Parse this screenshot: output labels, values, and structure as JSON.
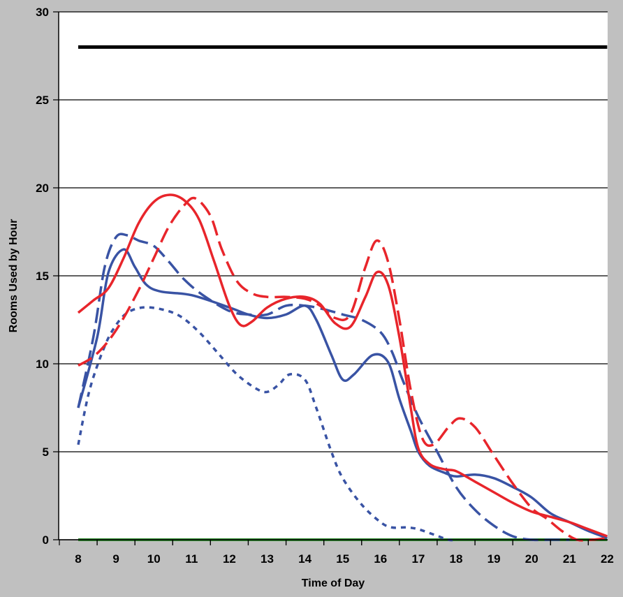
{
  "chart_data": {
    "type": "line",
    "title": "",
    "xlabel": "Time of Day",
    "ylabel": "Rooms Used by Hour",
    "xlim": [
      8,
      22
    ],
    "ylim": [
      0,
      30
    ],
    "x_ticks": [
      "8",
      "9",
      "10",
      "11",
      "12",
      "13",
      "14",
      "15",
      "16",
      "17",
      "18",
      "19",
      "20",
      "21",
      "22"
    ],
    "y_ticks": [
      "0",
      "5",
      "10",
      "15",
      "20",
      "25",
      "30"
    ],
    "grid": "horizontal",
    "legend": "none",
    "series": [
      {
        "color": "#000000",
        "dash": "solid",
        "width": 5,
        "points": [
          [
            8,
            28
          ],
          [
            22,
            28
          ]
        ]
      },
      {
        "color": "#2e8b2e",
        "dash": "solid",
        "width": 4,
        "points": [
          [
            8,
            0
          ],
          [
            22,
            0
          ]
        ]
      },
      {
        "color": "#3953a4",
        "dash": "solid",
        "width": 3.5,
        "points": [
          [
            8,
            7.5
          ],
          [
            8.5,
            11.5
          ],
          [
            8.8,
            15.2
          ],
          [
            9.2,
            16.5
          ],
          [
            9.5,
            15.5
          ],
          [
            9.8,
            14.5
          ],
          [
            10.2,
            14.1
          ],
          [
            11,
            13.9
          ],
          [
            12,
            13.2
          ],
          [
            12.5,
            12.8
          ],
          [
            13,
            12.6
          ],
          [
            13.5,
            12.8
          ],
          [
            14,
            13.3
          ],
          [
            14.3,
            12.5
          ],
          [
            14.7,
            10.5
          ],
          [
            15,
            9.1
          ],
          [
            15.3,
            9.4
          ],
          [
            15.8,
            10.5
          ],
          [
            16.2,
            10.1
          ],
          [
            16.5,
            8.0
          ],
          [
            16.8,
            6.2
          ],
          [
            17,
            5.0
          ],
          [
            17.3,
            4.2
          ],
          [
            17.7,
            3.8
          ],
          [
            18,
            3.6
          ],
          [
            18.5,
            3.7
          ],
          [
            19,
            3.5
          ],
          [
            19.5,
            3.0
          ],
          [
            20,
            2.4
          ],
          [
            20.5,
            1.5
          ],
          [
            21,
            1.0
          ],
          [
            21.5,
            0.5
          ],
          [
            22,
            0.1
          ]
        ]
      },
      {
        "color": "#3953a4",
        "dash": "long",
        "width": 3.5,
        "points": [
          [
            8,
            7.5
          ],
          [
            8.4,
            11.5
          ],
          [
            8.7,
            15.5
          ],
          [
            9,
            17.2
          ],
          [
            9.3,
            17.3
          ],
          [
            9.6,
            17.0
          ],
          [
            10,
            16.7
          ],
          [
            10.4,
            15.8
          ],
          [
            10.8,
            14.8
          ],
          [
            11.3,
            13.9
          ],
          [
            12,
            13.0
          ],
          [
            12.5,
            12.8
          ],
          [
            13,
            12.8
          ],
          [
            13.5,
            13.3
          ],
          [
            14,
            13.3
          ],
          [
            14.5,
            13.1
          ],
          [
            15,
            12.8
          ],
          [
            15.5,
            12.5
          ],
          [
            16,
            11.8
          ],
          [
            16.3,
            10.7
          ],
          [
            16.6,
            9.0
          ],
          [
            17,
            7.0
          ],
          [
            17.5,
            5.0
          ],
          [
            18,
            3.0
          ],
          [
            18.5,
            1.7
          ],
          [
            19,
            0.8
          ],
          [
            19.5,
            0.2
          ],
          [
            20,
            0
          ],
          [
            20.5,
            0
          ],
          [
            21,
            0
          ]
        ]
      },
      {
        "color": "#3953a4",
        "dash": "short",
        "width": 3.5,
        "points": [
          [
            8,
            5.4
          ],
          [
            8.3,
            8.5
          ],
          [
            8.7,
            11.0
          ],
          [
            9,
            12.2
          ],
          [
            9.3,
            12.9
          ],
          [
            9.7,
            13.2
          ],
          [
            10.2,
            13.1
          ],
          [
            10.7,
            12.7
          ],
          [
            11.2,
            11.8
          ],
          [
            11.7,
            10.6
          ],
          [
            12.2,
            9.4
          ],
          [
            12.7,
            8.6
          ],
          [
            13,
            8.4
          ],
          [
            13.3,
            8.8
          ],
          [
            13.6,
            9.4
          ],
          [
            14,
            9.1
          ],
          [
            14.3,
            7.5
          ],
          [
            14.7,
            5.0
          ],
          [
            15,
            3.5
          ],
          [
            15.5,
            2.0
          ],
          [
            16,
            1.0
          ],
          [
            16.3,
            0.7
          ],
          [
            16.7,
            0.7
          ],
          [
            17,
            0.6
          ],
          [
            17.4,
            0.3
          ],
          [
            17.8,
            0
          ],
          [
            18,
            0
          ]
        ]
      },
      {
        "color": "#e8252b",
        "dash": "solid",
        "width": 3.5,
        "points": [
          [
            8,
            12.9
          ],
          [
            8.4,
            13.6
          ],
          [
            8.8,
            14.3
          ],
          [
            9.2,
            16.0
          ],
          [
            9.6,
            18.0
          ],
          [
            10,
            19.2
          ],
          [
            10.4,
            19.6
          ],
          [
            10.8,
            19.3
          ],
          [
            11.2,
            18.2
          ],
          [
            11.6,
            15.8
          ],
          [
            12,
            13.3
          ],
          [
            12.3,
            12.2
          ],
          [
            12.6,
            12.4
          ],
          [
            13,
            13.2
          ],
          [
            13.5,
            13.7
          ],
          [
            14,
            13.8
          ],
          [
            14.4,
            13.4
          ],
          [
            14.8,
            12.3
          ],
          [
            15.2,
            12.1
          ],
          [
            15.6,
            13.8
          ],
          [
            15.9,
            15.2
          ],
          [
            16.2,
            14.5
          ],
          [
            16.5,
            11.5
          ],
          [
            16.8,
            7.5
          ],
          [
            17,
            5.2
          ],
          [
            17.3,
            4.3
          ],
          [
            17.7,
            4.0
          ],
          [
            18,
            3.9
          ],
          [
            18.5,
            3.3
          ],
          [
            19,
            2.7
          ],
          [
            19.5,
            2.1
          ],
          [
            20,
            1.6
          ],
          [
            20.5,
            1.3
          ],
          [
            21,
            1.0
          ],
          [
            21.5,
            0.6
          ],
          [
            22,
            0.2
          ]
        ]
      },
      {
        "color": "#e8252b",
        "dash": "long",
        "width": 3.5,
        "points": [
          [
            8,
            9.9
          ],
          [
            8.4,
            10.4
          ],
          [
            8.8,
            11.3
          ],
          [
            9.2,
            12.6
          ],
          [
            9.6,
            14.2
          ],
          [
            10,
            16.0
          ],
          [
            10.4,
            17.8
          ],
          [
            10.8,
            19.0
          ],
          [
            11.1,
            19.4
          ],
          [
            11.5,
            18.4
          ],
          [
            11.8,
            16.5
          ],
          [
            12.2,
            14.7
          ],
          [
            12.6,
            14.0
          ],
          [
            13,
            13.8
          ],
          [
            13.5,
            13.8
          ],
          [
            14,
            13.7
          ],
          [
            14.4,
            13.3
          ],
          [
            14.8,
            12.6
          ],
          [
            15.2,
            12.8
          ],
          [
            15.6,
            15.5
          ],
          [
            15.9,
            17.0
          ],
          [
            16.2,
            15.8
          ],
          [
            16.5,
            12.5
          ],
          [
            16.8,
            8.5
          ],
          [
            17.1,
            5.8
          ],
          [
            17.4,
            5.4
          ],
          [
            17.8,
            6.4
          ],
          [
            18.1,
            6.9
          ],
          [
            18.5,
            6.4
          ],
          [
            19,
            4.8
          ],
          [
            19.5,
            3.2
          ],
          [
            20,
            1.8
          ],
          [
            20.4,
            1.2
          ],
          [
            20.8,
            0.5
          ],
          [
            21.2,
            0
          ],
          [
            21.6,
            0
          ],
          [
            22,
            0.1
          ]
        ]
      }
    ]
  }
}
